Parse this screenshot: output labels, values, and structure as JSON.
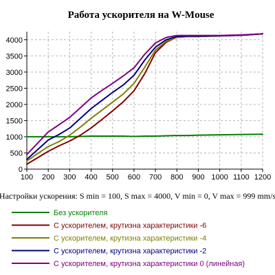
{
  "chart_data": {
    "type": "line",
    "title": "Работа ускорителя на W-Mouse",
    "xlabel": "",
    "ylabel": "",
    "xlim": [
      100,
      1200
    ],
    "ylim": [
      0,
      4250
    ],
    "x_ticks": [
      "100",
      "200",
      "300",
      "400",
      "500",
      "600",
      "700",
      "800",
      "900",
      "1000",
      "1100",
      "1200"
    ],
    "y_ticks": [
      "0",
      "500",
      "1000",
      "1500",
      "2000",
      "2500",
      "3000",
      "3500",
      "4000"
    ],
    "grid": true,
    "legend_position": "below",
    "settings_text": "Настройки ускорения: S min = 100, S max = 4000, V min = 0, V max = 999 mm/s",
    "x": [
      100,
      150,
      200,
      250,
      300,
      350,
      400,
      450,
      500,
      550,
      600,
      650,
      700,
      750,
      800,
      850,
      900,
      1000,
      1100,
      1200
    ],
    "series": [
      {
        "name": "Без ускорителя",
        "color": "#008000",
        "values": [
          1000,
          1000,
          1000,
          1000,
          1000,
          1010,
          1020,
          1020,
          1020,
          1020,
          1010,
          1020,
          1020,
          1030,
          1040,
          1040,
          1050,
          1060,
          1070,
          1080
        ]
      },
      {
        "name": "С ускорителем, крутизна характеристики -6",
        "color": "#800000",
        "values": [
          150,
          350,
          550,
          720,
          870,
          1050,
          1270,
          1530,
          1800,
          2080,
          2420,
          2950,
          3600,
          3920,
          4080,
          4100,
          4100,
          4120,
          4140,
          4180
        ]
      },
      {
        "name": "С ускорителем, крутизна характеристики -4",
        "color": "#808000",
        "values": [
          250,
          480,
          700,
          850,
          1050,
          1300,
          1570,
          1820,
          2070,
          2320,
          2650,
          3150,
          3680,
          3950,
          4070,
          4100,
          4100,
          4120,
          4140,
          4180
        ]
      },
      {
        "name": "С ускорителем, крутизна характеристики -2",
        "color": "#000080",
        "values": [
          300,
          600,
          900,
          1070,
          1270,
          1570,
          1870,
          2120,
          2370,
          2600,
          2900,
          3370,
          3770,
          4000,
          4100,
          4110,
          4110,
          4120,
          4140,
          4180
        ]
      },
      {
        "name": "С ускорителем, крутизна характеристики 0 (линейная)",
        "color": "#800080",
        "values": [
          450,
          800,
          1150,
          1370,
          1600,
          1900,
          2200,
          2430,
          2650,
          2880,
          3130,
          3550,
          3900,
          4070,
          4130,
          4130,
          4130,
          4130,
          4150,
          4180
        ]
      }
    ]
  }
}
